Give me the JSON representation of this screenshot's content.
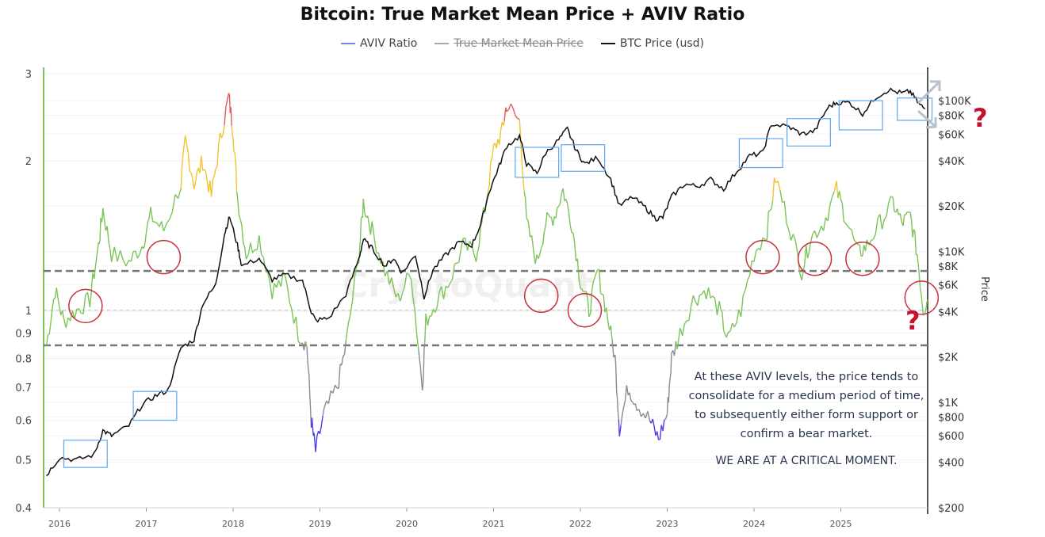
{
  "chart_data": {
    "type": "line",
    "title": "Bitcoin: True Market Mean Price + AVIV Ratio",
    "legend": [
      {
        "name": "AVIV Ratio",
        "color": "#6b8ee8",
        "hidden": false
      },
      {
        "name": "True Market Mean Price",
        "color": "#999999",
        "hidden": true
      },
      {
        "name": "BTC Price (usd)",
        "color": "#111111",
        "hidden": false
      }
    ],
    "legend_position": "top-center",
    "x_ticks": [
      "2016",
      "2017",
      "2018",
      "2019",
      "2020",
      "2021",
      "2022",
      "2023",
      "2024",
      "2025"
    ],
    "x_range": [
      2015.83,
      2026.05
    ],
    "left_axis": {
      "scale": "log",
      "range": [
        0.4,
        3
      ],
      "ticks": [
        "3",
        "2",
        "1",
        "0.9",
        "0.8",
        "0.7",
        "0.6",
        "0.5",
        "0.4"
      ]
    },
    "right_axis": {
      "label": "Price",
      "scale": "log",
      "range": [
        200,
        100000
      ],
      "ticks": [
        "$100K",
        "$80K",
        "$60K",
        "$40K",
        "$20K",
        "$10K",
        "$8K",
        "$6K",
        "$4K",
        "$2K",
        "$1K",
        "$800",
        "$600",
        "$400",
        "$200"
      ]
    },
    "aviv_color_bands": [
      {
        "min": 2.4,
        "color": "#e35b5b"
      },
      {
        "min": 1.75,
        "color": "#f2c230"
      },
      {
        "min": 0.85,
        "color": "#7cc35a"
      },
      {
        "min": 0.6,
        "color": "#8a8a96"
      },
      {
        "min": 0,
        "color": "#4a3ee6"
      }
    ],
    "reference_lines": [
      {
        "value": 1.2,
        "style": "dashed-dark"
      },
      {
        "value": 1.0,
        "style": "dashed-light"
      },
      {
        "value": 0.85,
        "style": "dashed-dark"
      }
    ],
    "series": [
      {
        "name": "BTC Price (usd)",
        "axis": "right",
        "x": [
          2015.85,
          2016.0,
          2016.2,
          2016.4,
          2016.5,
          2016.6,
          2016.8,
          2016.95,
          2017.1,
          2017.25,
          2017.4,
          2017.55,
          2017.65,
          2017.8,
          2017.9,
          2017.96,
          2018.05,
          2018.1,
          2018.3,
          2018.45,
          2018.6,
          2018.8,
          2018.9,
          2018.95,
          2019.1,
          2019.3,
          2019.45,
          2019.5,
          2019.6,
          2019.75,
          2019.85,
          2019.95,
          2020.1,
          2020.2,
          2020.3,
          2020.45,
          2020.6,
          2020.75,
          2020.85,
          2020.95,
          2021.05,
          2021.15,
          2021.3,
          2021.38,
          2021.5,
          2021.6,
          2021.75,
          2021.85,
          2021.95,
          2022.05,
          2022.2,
          2022.35,
          2022.45,
          2022.6,
          2022.75,
          2022.87,
          2022.95,
          2023.05,
          2023.2,
          2023.35,
          2023.5,
          2023.65,
          2023.8,
          2023.95,
          2024.1,
          2024.2,
          2024.4,
          2024.55,
          2024.7,
          2024.85,
          2024.95,
          2025.1,
          2025.25,
          2025.4,
          2025.55,
          2025.7,
          2025.8,
          2025.9,
          2025.97
        ],
        "values": [
          330,
          430,
          415,
          450,
          650,
          600,
          700,
          960,
          1100,
          1200,
          2300,
          2600,
          4500,
          6000,
          13000,
          17000,
          11000,
          8000,
          9000,
          6500,
          7000,
          6400,
          4000,
          3500,
          3600,
          5200,
          9000,
          12000,
          10500,
          8000,
          9000,
          7200,
          9500,
          5000,
          7500,
          9500,
          11500,
          11000,
          15000,
          25000,
          35000,
          50000,
          58000,
          38000,
          33000,
          45000,
          55000,
          65000,
          47000,
          38000,
          42000,
          30000,
          20000,
          23000,
          19500,
          16500,
          16800,
          23000,
          28000,
          27000,
          30000,
          26000,
          34000,
          43000,
          45000,
          70000,
          67000,
          60000,
          63000,
          90000,
          97000,
          97000,
          82000,
          105000,
          118000,
          112000,
          115000,
          95000,
          88000
        ]
      },
      {
        "name": "AVIV Ratio",
        "axis": "left",
        "x": [
          2015.85,
          2015.95,
          2016.05,
          2016.2,
          2016.35,
          2016.45,
          2016.5,
          2016.6,
          2016.8,
          2016.95,
          2017.05,
          2017.2,
          2017.4,
          2017.45,
          2017.55,
          2017.65,
          2017.75,
          2017.85,
          2017.95,
          2018.0,
          2018.05,
          2018.15,
          2018.3,
          2018.45,
          2018.6,
          2018.75,
          2018.85,
          2018.9,
          2018.95,
          2019.05,
          2019.2,
          2019.3,
          2019.45,
          2019.5,
          2019.6,
          2019.75,
          2019.9,
          2020.05,
          2020.18,
          2020.22,
          2020.35,
          2020.5,
          2020.65,
          2020.8,
          2020.9,
          2021.0,
          2021.1,
          2021.15,
          2021.3,
          2021.38,
          2021.5,
          2021.6,
          2021.7,
          2021.8,
          2021.9,
          2022.0,
          2022.1,
          2022.2,
          2022.3,
          2022.4,
          2022.45,
          2022.55,
          2022.65,
          2022.8,
          2022.9,
          2023.0,
          2023.05,
          2023.15,
          2023.3,
          2023.45,
          2023.6,
          2023.7,
          2023.85,
          2024.0,
          2024.15,
          2024.25,
          2024.4,
          2024.55,
          2024.65,
          2024.8,
          2024.95,
          2025.05,
          2025.2,
          2025.3,
          2025.45,
          2025.6,
          2025.7,
          2025.8,
          2025.88,
          2025.95,
          2026.0
        ],
        "values": [
          0.85,
          1.1,
          0.95,
          1.0,
          1.05,
          1.35,
          1.6,
          1.3,
          1.25,
          1.35,
          1.55,
          1.45,
          1.8,
          2.2,
          1.8,
          2.0,
          1.7,
          2.2,
          2.7,
          2.3,
          1.7,
          1.3,
          1.4,
          1.1,
          1.15,
          0.9,
          0.85,
          0.6,
          0.52,
          0.62,
          0.7,
          0.85,
          1.3,
          1.65,
          1.45,
          1.2,
          1.05,
          1.2,
          0.7,
          0.95,
          1.05,
          1.15,
          1.35,
          1.3,
          1.6,
          2.1,
          2.3,
          2.6,
          2.4,
          1.5,
          1.25,
          1.5,
          1.55,
          1.75,
          1.5,
          1.15,
          1.0,
          1.2,
          1.0,
          0.8,
          0.58,
          0.7,
          0.65,
          0.6,
          0.55,
          0.62,
          0.8,
          0.9,
          1.05,
          1.1,
          1.0,
          0.87,
          1.0,
          1.3,
          1.45,
          1.85,
          1.5,
          1.2,
          1.4,
          1.5,
          1.75,
          1.55,
          1.3,
          1.35,
          1.5,
          1.65,
          1.5,
          1.55,
          1.3,
          1.0,
          1.05
        ]
      }
    ],
    "annotations": {
      "price_boxes": [
        {
          "x": [
            2016.05,
            2016.55
          ],
          "price": [
            370,
            560
          ]
        },
        {
          "x": [
            2016.85,
            2017.35
          ],
          "price": [
            760,
            1180
          ]
        },
        {
          "x": [
            2021.25,
            2021.75
          ],
          "price": [
            31000,
            49000
          ]
        },
        {
          "x": [
            2021.78,
            2022.28
          ],
          "price": [
            34000,
            51000
          ]
        },
        {
          "x": [
            2023.83,
            2024.33
          ],
          "price": [
            36000,
            56000
          ]
        },
        {
          "x": [
            2024.38,
            2024.88
          ],
          "price": [
            50000,
            76000
          ]
        },
        {
          "x": [
            2024.98,
            2025.48
          ],
          "price": [
            64000,
            100000
          ]
        },
        {
          "x": [
            2025.65,
            2026.05
          ],
          "price": [
            74000,
            104000
          ]
        }
      ],
      "aviv_circles": [
        {
          "x": 2016.3,
          "value": 1.02
        },
        {
          "x": 2017.2,
          "value": 1.28
        },
        {
          "x": 2021.55,
          "value": 1.07
        },
        {
          "x": 2022.05,
          "value": 1.0
        },
        {
          "x": 2024.1,
          "value": 1.28
        },
        {
          "x": 2024.7,
          "value": 1.27
        },
        {
          "x": 2025.25,
          "value": 1.27
        },
        {
          "x": 2025.93,
          "value": 1.06
        }
      ],
      "note": "At these AVIV levels, the price tends to consolidate for a medium period of time, to subsequently either form support or confirm a bear market.",
      "note_emphasis": "WE ARE AT A CRITICAL MOMENT.",
      "question_mark": "?"
    },
    "watermark": "CryptoQuant",
    "grid": true
  }
}
